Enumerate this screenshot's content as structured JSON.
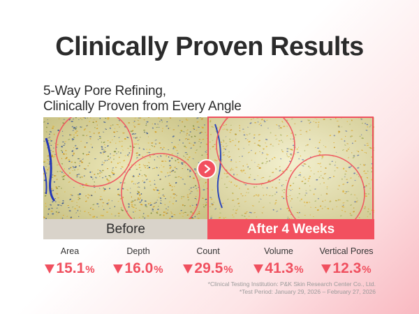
{
  "title": "Clinically Proven Results",
  "subtitle": {
    "line1": "5-Way Pore Refining,",
    "line2": "Clinically Proven from Every Angle"
  },
  "images": {
    "before_label": "Before",
    "after_label": "After 4 Weeks",
    "arrow_icon": "chevron-right-icon"
  },
  "metrics": [
    {
      "name": "Area",
      "value": "15.1",
      "unit": "%"
    },
    {
      "name": "Depth",
      "value": "16.0",
      "unit": "%"
    },
    {
      "name": "Count",
      "value": "29.5",
      "unit": "%"
    },
    {
      "name": "Volume",
      "value": "41.3",
      "unit": "%"
    },
    {
      "name": "Vertical Pores",
      "value": "12.3",
      "unit": "%"
    }
  ],
  "notes": {
    "institution": "*Clinical Testing Institution: P&K Skin Research Center Co., Ltd.",
    "period": "*Test Period: January 29, 2026 – February 27, 2026"
  },
  "colors": {
    "accent": "#f2505f",
    "before_bar": "#d9d3ca",
    "title_text": "#2b2b2b"
  }
}
